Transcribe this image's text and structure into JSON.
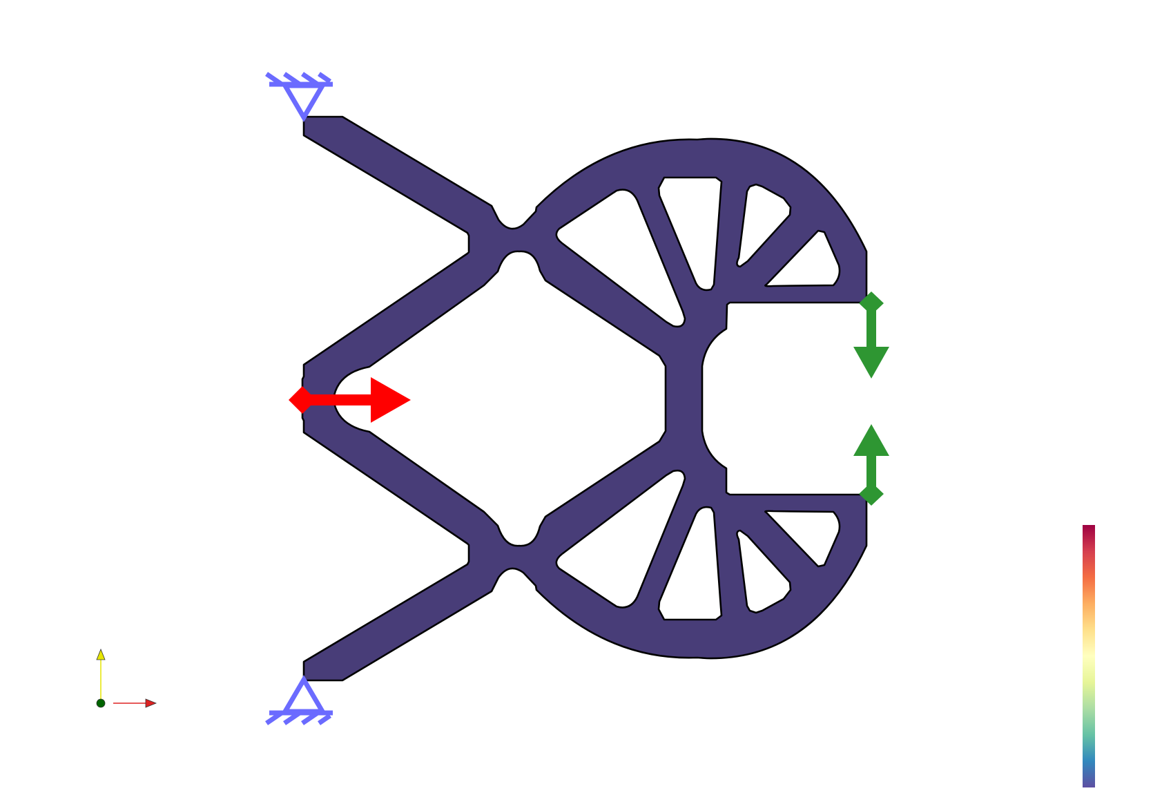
{
  "view": {
    "background": "#ffffff"
  },
  "structure": {
    "fill_color": "#483d78",
    "outline_color": "#000000"
  },
  "supports": {
    "color": "#6b6bff",
    "type": "fixed-pin",
    "count": 2
  },
  "input_force": {
    "color": "#ff0000",
    "direction": "right"
  },
  "output_ports": {
    "color": "#2e9632",
    "directions": [
      "down",
      "up"
    ]
  },
  "axes_triad": {
    "x_axis_color": "#dd2222",
    "y_axis_color": "#e6e600",
    "origin_color": "#006400"
  },
  "colorbar": {
    "colormap": "spectral",
    "stops": [
      "#5e4fa2",
      "#3288bd",
      "#66c2a5",
      "#abdda4",
      "#e6f598",
      "#ffffbf",
      "#fee08b",
      "#fdae61",
      "#f46d43",
      "#d53e4f",
      "#9e0142"
    ],
    "tick_count": 13
  }
}
